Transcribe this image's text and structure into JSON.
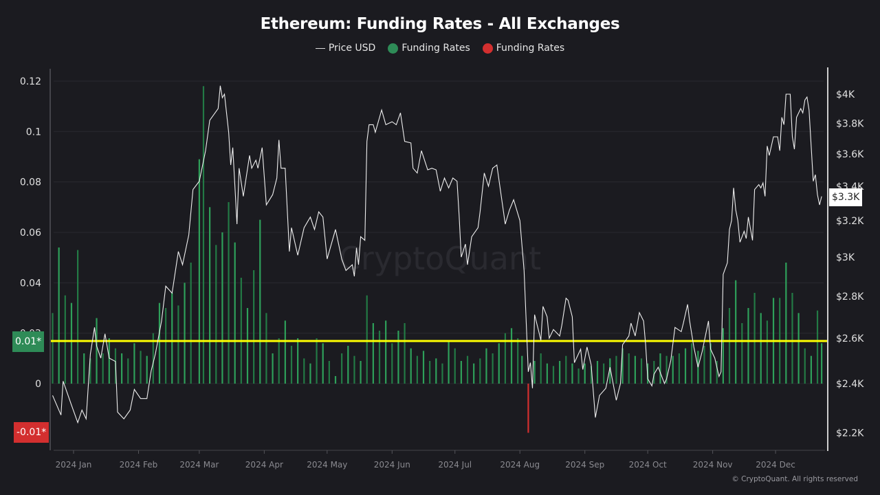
{
  "chart_data": {
    "type": "bar+line",
    "title": "Ethereum: Funding Rates - All Exchanges",
    "legend": [
      {
        "label": "Price USD",
        "marker": "line",
        "color": "#ffffff"
      },
      {
        "label": "Funding Rates",
        "marker": "dot",
        "color": "#2e8b57"
      },
      {
        "label": "Funding Rates",
        "marker": "dot",
        "color": "#d32f2f"
      }
    ],
    "legend_placement": "top-center",
    "left_axis": {
      "ticks": [
        "0.12",
        "0.1",
        "0.08",
        "0.06",
        "0.04",
        "0.02",
        "0"
      ],
      "tick_values": [
        0.12,
        0.1,
        0.08,
        0.06,
        0.04,
        0.02,
        0
      ],
      "ylim": [
        -0.02,
        0.12
      ]
    },
    "right_axis": {
      "scale": "log",
      "ticks": [
        "$4K",
        "$3.8K",
        "$3.6K",
        "$3.4K",
        "$3.2K",
        "$3K",
        "$2.8K",
        "$2.6K",
        "$2.4K",
        "$2.2K"
      ],
      "tick_values": [
        4000,
        3800,
        3600,
        3400,
        3200,
        3000,
        2800,
        2600,
        2400,
        2200
      ],
      "ylim": [
        2200,
        4000
      ]
    },
    "x_axis": {
      "ticks": [
        "2024 Jan",
        "2024 Feb",
        "2024 Mar",
        "2024 Apr",
        "2024 May",
        "2024 Jun",
        "2024 Jul",
        "2024 Aug",
        "2024 Sep",
        "2024 Oct",
        "2024 Nov",
        "2024 Dec"
      ],
      "tick_dates": [
        "2024-01-01",
        "2024-02-01",
        "2024-03-01",
        "2024-04-01",
        "2024-05-01",
        "2024-06-01",
        "2024-07-01",
        "2024-08-01",
        "2024-09-01",
        "2024-10-01",
        "2024-11-01",
        "2024-12-01"
      ]
    },
    "grid": true,
    "reference_line": {
      "label": "0.01*",
      "color": "#ffff00"
    },
    "markers": {
      "positive_label": "0.01*",
      "positive_color": "#2e8b57",
      "negative_label": "-0.01*",
      "negative_color": "#d32f2f",
      "price_label": "$3.3K"
    },
    "colors": {
      "positive": "#2ea05a",
      "negative": "#d32f2f",
      "price": "#ffffff",
      "background": "#1b1b20"
    },
    "watermark": "CryptoQuant",
    "price_series": [
      [
        "2023-12-22",
        2350
      ],
      [
        "2023-12-26",
        2270
      ],
      [
        "2023-12-27",
        2410
      ],
      [
        "2023-12-31",
        2310
      ],
      [
        "2024-01-03",
        2240
      ],
      [
        "2024-01-05",
        2290
      ],
      [
        "2024-01-07",
        2255
      ],
      [
        "2024-01-09",
        2527
      ],
      [
        "2024-01-11",
        2650
      ],
      [
        "2024-01-12",
        2565
      ],
      [
        "2024-01-14",
        2510
      ],
      [
        "2024-01-16",
        2620
      ],
      [
        "2024-01-18",
        2510
      ],
      [
        "2024-01-21",
        2495
      ],
      [
        "2024-01-22",
        2282
      ],
      [
        "2024-01-25",
        2255
      ],
      [
        "2024-01-28",
        2290
      ],
      [
        "2024-01-30",
        2375
      ],
      [
        "2024-02-02",
        2337
      ],
      [
        "2024-02-05",
        2337
      ],
      [
        "2024-02-07",
        2453
      ],
      [
        "2024-02-09",
        2527
      ],
      [
        "2024-02-12",
        2680
      ],
      [
        "2024-02-14",
        2850
      ],
      [
        "2024-02-17",
        2815
      ],
      [
        "2024-02-20",
        3030
      ],
      [
        "2024-02-22",
        2960
      ],
      [
        "2024-02-25",
        3120
      ],
      [
        "2024-02-27",
        3380
      ],
      [
        "2024-03-01",
        3430
      ],
      [
        "2024-03-04",
        3620
      ],
      [
        "2024-03-06",
        3820
      ],
      [
        "2024-03-10",
        3900
      ],
      [
        "2024-03-11",
        4060
      ],
      [
        "2024-03-12",
        3975
      ],
      [
        "2024-03-13",
        4000
      ],
      [
        "2024-03-15",
        3740
      ],
      [
        "2024-03-16",
        3530
      ],
      [
        "2024-03-17",
        3640
      ],
      [
        "2024-03-19",
        3180
      ],
      [
        "2024-03-20",
        3510
      ],
      [
        "2024-03-22",
        3340
      ],
      [
        "2024-03-25",
        3590
      ],
      [
        "2024-03-26",
        3510
      ],
      [
        "2024-03-28",
        3560
      ],
      [
        "2024-03-29",
        3510
      ],
      [
        "2024-03-31",
        3640
      ],
      [
        "2024-04-02",
        3290
      ],
      [
        "2024-04-05",
        3350
      ],
      [
        "2024-04-07",
        3450
      ],
      [
        "2024-04-08",
        3690
      ],
      [
        "2024-04-09",
        3510
      ],
      [
        "2024-04-11",
        3510
      ],
      [
        "2024-04-13",
        3030
      ],
      [
        "2024-04-14",
        3160
      ],
      [
        "2024-04-17",
        3010
      ],
      [
        "2024-04-20",
        3160
      ],
      [
        "2024-04-23",
        3220
      ],
      [
        "2024-04-25",
        3150
      ],
      [
        "2024-04-27",
        3250
      ],
      [
        "2024-04-29",
        3220
      ],
      [
        "2024-05-01",
        2990
      ],
      [
        "2024-05-05",
        3150
      ],
      [
        "2024-05-08",
        2990
      ],
      [
        "2024-05-10",
        2930
      ],
      [
        "2024-05-13",
        2960
      ],
      [
        "2024-05-14",
        2900
      ],
      [
        "2024-05-15",
        3050
      ],
      [
        "2024-05-16",
        2960
      ],
      [
        "2024-05-17",
        3110
      ],
      [
        "2024-05-19",
        3090
      ],
      [
        "2024-05-20",
        3680
      ],
      [
        "2024-05-21",
        3790
      ],
      [
        "2024-05-23",
        3790
      ],
      [
        "2024-05-24",
        3740
      ],
      [
        "2024-05-27",
        3890
      ],
      [
        "2024-05-29",
        3790
      ],
      [
        "2024-06-01",
        3810
      ],
      [
        "2024-06-03",
        3790
      ],
      [
        "2024-06-05",
        3870
      ],
      [
        "2024-06-07",
        3680
      ],
      [
        "2024-06-10",
        3670
      ],
      [
        "2024-06-11",
        3510
      ],
      [
        "2024-06-13",
        3480
      ],
      [
        "2024-06-15",
        3620
      ],
      [
        "2024-06-18",
        3500
      ],
      [
        "2024-06-20",
        3510
      ],
      [
        "2024-06-22",
        3500
      ],
      [
        "2024-06-24",
        3370
      ],
      [
        "2024-06-26",
        3450
      ],
      [
        "2024-06-28",
        3390
      ],
      [
        "2024-06-30",
        3450
      ],
      [
        "2024-07-02",
        3430
      ],
      [
        "2024-07-03",
        3230
      ],
      [
        "2024-07-04",
        3000
      ],
      [
        "2024-07-06",
        3070
      ],
      [
        "2024-07-07",
        2960
      ],
      [
        "2024-07-09",
        3110
      ],
      [
        "2024-07-12",
        3160
      ],
      [
        "2024-07-13",
        3250
      ],
      [
        "2024-07-15",
        3480
      ],
      [
        "2024-07-17",
        3400
      ],
      [
        "2024-07-19",
        3510
      ],
      [
        "2024-07-21",
        3530
      ],
      [
        "2024-07-22",
        3440
      ],
      [
        "2024-07-25",
        3180
      ],
      [
        "2024-07-27",
        3260
      ],
      [
        "2024-07-29",
        3320
      ],
      [
        "2024-08-01",
        3200
      ],
      [
        "2024-08-03",
        2930
      ],
      [
        "2024-08-05",
        2450
      ],
      [
        "2024-08-06",
        2490
      ],
      [
        "2024-08-07",
        2380
      ],
      [
        "2024-08-08",
        2710
      ],
      [
        "2024-08-10",
        2630
      ],
      [
        "2024-08-11",
        2590
      ],
      [
        "2024-08-12",
        2750
      ],
      [
        "2024-08-14",
        2700
      ],
      [
        "2024-08-15",
        2600
      ],
      [
        "2024-08-17",
        2640
      ],
      [
        "2024-08-20",
        2610
      ],
      [
        "2024-08-21",
        2660
      ],
      [
        "2024-08-23",
        2790
      ],
      [
        "2024-08-24",
        2780
      ],
      [
        "2024-08-26",
        2700
      ],
      [
        "2024-08-27",
        2490
      ],
      [
        "2024-08-30",
        2550
      ],
      [
        "2024-08-31",
        2460
      ],
      [
        "2024-09-02",
        2560
      ],
      [
        "2024-09-04",
        2480
      ],
      [
        "2024-09-06",
        2260
      ],
      [
        "2024-09-08",
        2350
      ],
      [
        "2024-09-11",
        2380
      ],
      [
        "2024-09-13",
        2470
      ],
      [
        "2024-09-16",
        2330
      ],
      [
        "2024-09-18",
        2400
      ],
      [
        "2024-09-19",
        2570
      ],
      [
        "2024-09-22",
        2610
      ],
      [
        "2024-09-23",
        2670
      ],
      [
        "2024-09-25",
        2610
      ],
      [
        "2024-09-27",
        2720
      ],
      [
        "2024-09-29",
        2680
      ],
      [
        "2024-09-30",
        2570
      ],
      [
        "2024-10-01",
        2420
      ],
      [
        "2024-10-03",
        2390
      ],
      [
        "2024-10-04",
        2440
      ],
      [
        "2024-10-06",
        2470
      ],
      [
        "2024-10-09",
        2400
      ],
      [
        "2024-10-10",
        2420
      ],
      [
        "2024-10-12",
        2500
      ],
      [
        "2024-10-14",
        2650
      ],
      [
        "2024-10-17",
        2630
      ],
      [
        "2024-10-18",
        2670
      ],
      [
        "2024-10-20",
        2760
      ],
      [
        "2024-10-21",
        2680
      ],
      [
        "2024-10-23",
        2560
      ],
      [
        "2024-10-25",
        2470
      ],
      [
        "2024-10-27",
        2540
      ],
      [
        "2024-10-30",
        2680
      ],
      [
        "2024-10-31",
        2550
      ],
      [
        "2024-11-02",
        2510
      ],
      [
        "2024-11-04",
        2430
      ],
      [
        "2024-11-05",
        2450
      ],
      [
        "2024-11-06",
        2910
      ],
      [
        "2024-11-08",
        2970
      ],
      [
        "2024-11-09",
        3150
      ],
      [
        "2024-11-10",
        3200
      ],
      [
        "2024-11-11",
        3390
      ],
      [
        "2024-11-12",
        3260
      ],
      [
        "2024-11-13",
        3200
      ],
      [
        "2024-11-14",
        3080
      ],
      [
        "2024-11-16",
        3140
      ],
      [
        "2024-11-17",
        3100
      ],
      [
        "2024-11-18",
        3220
      ],
      [
        "2024-11-20",
        3090
      ],
      [
        "2024-11-21",
        3380
      ],
      [
        "2024-11-23",
        3410
      ],
      [
        "2024-11-24",
        3390
      ],
      [
        "2024-11-25",
        3420
      ],
      [
        "2024-11-26",
        3340
      ],
      [
        "2024-11-27",
        3650
      ],
      [
        "2024-11-28",
        3590
      ],
      [
        "2024-11-30",
        3710
      ],
      [
        "2024-12-02",
        3710
      ],
      [
        "2024-12-03",
        3620
      ],
      [
        "2024-12-04",
        3840
      ],
      [
        "2024-12-05",
        3790
      ],
      [
        "2024-12-06",
        4000
      ],
      [
        "2024-12-08",
        4000
      ],
      [
        "2024-12-09",
        3710
      ],
      [
        "2024-12-10",
        3630
      ],
      [
        "2024-12-11",
        3840
      ],
      [
        "2024-12-13",
        3900
      ],
      [
        "2024-12-14",
        3870
      ],
      [
        "2024-12-15",
        3960
      ],
      [
        "2024-12-16",
        3980
      ],
      [
        "2024-12-17",
        3890
      ],
      [
        "2024-12-19",
        3430
      ],
      [
        "2024-12-20",
        3470
      ],
      [
        "2024-12-21",
        3350
      ],
      [
        "2024-12-22",
        3290
      ],
      [
        "2024-12-23",
        3340
      ]
    ],
    "funding_series": [
      [
        "2023-12-22",
        0.028
      ],
      [
        "2023-12-25",
        0.054
      ],
      [
        "2023-12-28",
        0.035
      ],
      [
        "2023-12-31",
        0.032
      ],
      [
        "2024-01-03",
        0.053
      ],
      [
        "2024-01-06",
        0.012
      ],
      [
        "2024-01-09",
        0.01
      ],
      [
        "2024-01-12",
        0.026
      ],
      [
        "2024-01-15",
        0.012
      ],
      [
        "2024-01-18",
        0.018
      ],
      [
        "2024-01-21",
        0.014
      ],
      [
        "2024-01-24",
        0.012
      ],
      [
        "2024-01-27",
        0.01
      ],
      [
        "2024-01-30",
        0.016
      ],
      [
        "2024-02-02",
        0.013
      ],
      [
        "2024-02-05",
        0.011
      ],
      [
        "2024-02-08",
        0.02
      ],
      [
        "2024-02-11",
        0.032
      ],
      [
        "2024-02-14",
        0.03
      ],
      [
        "2024-02-17",
        0.036
      ],
      [
        "2024-02-20",
        0.031
      ],
      [
        "2024-02-23",
        0.04
      ],
      [
        "2024-02-26",
        0.048
      ],
      [
        "2024-03-01",
        0.089
      ],
      [
        "2024-03-03",
        0.118
      ],
      [
        "2024-03-06",
        0.07
      ],
      [
        "2024-03-09",
        0.055
      ],
      [
        "2024-03-12",
        0.06
      ],
      [
        "2024-03-15",
        0.072
      ],
      [
        "2024-03-18",
        0.056
      ],
      [
        "2024-03-21",
        0.042
      ],
      [
        "2024-03-24",
        0.03
      ],
      [
        "2024-03-27",
        0.045
      ],
      [
        "2024-03-30",
        0.065
      ],
      [
        "2024-04-02",
        0.028
      ],
      [
        "2024-04-05",
        0.012
      ],
      [
        "2024-04-08",
        0.018
      ],
      [
        "2024-04-11",
        0.025
      ],
      [
        "2024-04-14",
        0.015
      ],
      [
        "2024-04-17",
        0.018
      ],
      [
        "2024-04-20",
        0.01
      ],
      [
        "2024-04-23",
        0.008
      ],
      [
        "2024-04-26",
        0.018
      ],
      [
        "2024-04-29",
        0.016
      ],
      [
        "2024-05-02",
        0.009
      ],
      [
        "2024-05-05",
        0.003
      ],
      [
        "2024-05-08",
        0.012
      ],
      [
        "2024-05-11",
        0.015
      ],
      [
        "2024-05-14",
        0.011
      ],
      [
        "2024-05-17",
        0.009
      ],
      [
        "2024-05-20",
        0.035
      ],
      [
        "2024-05-23",
        0.024
      ],
      [
        "2024-05-26",
        0.021
      ],
      [
        "2024-05-29",
        0.025
      ],
      [
        "2024-06-01",
        0.016
      ],
      [
        "2024-06-04",
        0.021
      ],
      [
        "2024-06-07",
        0.024
      ],
      [
        "2024-06-10",
        0.014
      ],
      [
        "2024-06-13",
        0.011
      ],
      [
        "2024-06-16",
        0.013
      ],
      [
        "2024-06-19",
        0.009
      ],
      [
        "2024-06-22",
        0.01
      ],
      [
        "2024-06-25",
        0.008
      ],
      [
        "2024-06-28",
        0.017
      ],
      [
        "2024-07-01",
        0.014
      ],
      [
        "2024-07-04",
        0.009
      ],
      [
        "2024-07-07",
        0.011
      ],
      [
        "2024-07-10",
        0.008
      ],
      [
        "2024-07-13",
        0.01
      ],
      [
        "2024-07-16",
        0.014
      ],
      [
        "2024-07-19",
        0.012
      ],
      [
        "2024-07-22",
        0.016
      ],
      [
        "2024-07-25",
        0.02
      ],
      [
        "2024-07-28",
        0.022
      ],
      [
        "2024-07-31",
        0.018
      ],
      [
        "2024-08-02",
        0.011
      ],
      [
        "2024-08-05",
        -0.0195
      ],
      [
        "2024-08-08",
        0.009
      ],
      [
        "2024-08-11",
        0.012
      ],
      [
        "2024-08-14",
        0.008
      ],
      [
        "2024-08-17",
        0.007
      ],
      [
        "2024-08-20",
        0.009
      ],
      [
        "2024-08-23",
        0.011
      ],
      [
        "2024-08-26",
        0.008
      ],
      [
        "2024-08-29",
        0.006
      ],
      [
        "2024-09-01",
        0.008
      ],
      [
        "2024-09-04",
        0.007
      ],
      [
        "2024-09-07",
        0.009
      ],
      [
        "2024-09-10",
        0.008
      ],
      [
        "2024-09-13",
        0.01
      ],
      [
        "2024-09-16",
        0.011
      ],
      [
        "2024-09-19",
        0.014
      ],
      [
        "2024-09-22",
        0.012
      ],
      [
        "2024-09-25",
        0.011
      ],
      [
        "2024-09-28",
        0.01
      ],
      [
        "2024-10-01",
        0.008
      ],
      [
        "2024-10-04",
        0.009
      ],
      [
        "2024-10-07",
        0.012
      ],
      [
        "2024-10-10",
        0.011
      ],
      [
        "2024-10-13",
        0.011
      ],
      [
        "2024-10-16",
        0.012
      ],
      [
        "2024-10-19",
        0.014
      ],
      [
        "2024-10-22",
        0.016
      ],
      [
        "2024-10-25",
        0.013
      ],
      [
        "2024-10-28",
        0.015
      ],
      [
        "2024-10-31",
        0.016
      ],
      [
        "2024-11-03",
        0.009
      ],
      [
        "2024-11-06",
        0.022
      ],
      [
        "2024-11-09",
        0.03
      ],
      [
        "2024-11-12",
        0.041
      ],
      [
        "2024-11-15",
        0.024
      ],
      [
        "2024-11-18",
        0.03
      ],
      [
        "2024-11-21",
        0.036
      ],
      [
        "2024-11-24",
        0.028
      ],
      [
        "2024-11-27",
        0.025
      ],
      [
        "2024-11-30",
        0.034
      ],
      [
        "2024-12-03",
        0.034
      ],
      [
        "2024-12-06",
        0.048
      ],
      [
        "2024-12-09",
        0.036
      ],
      [
        "2024-12-12",
        0.028
      ],
      [
        "2024-12-15",
        0.014
      ],
      [
        "2024-12-18",
        0.011
      ],
      [
        "2024-12-21",
        0.029
      ],
      [
        "2024-12-23",
        0.016
      ]
    ]
  },
  "footer": {
    "copyright": "© CryptoQuant. All rights reserved"
  }
}
